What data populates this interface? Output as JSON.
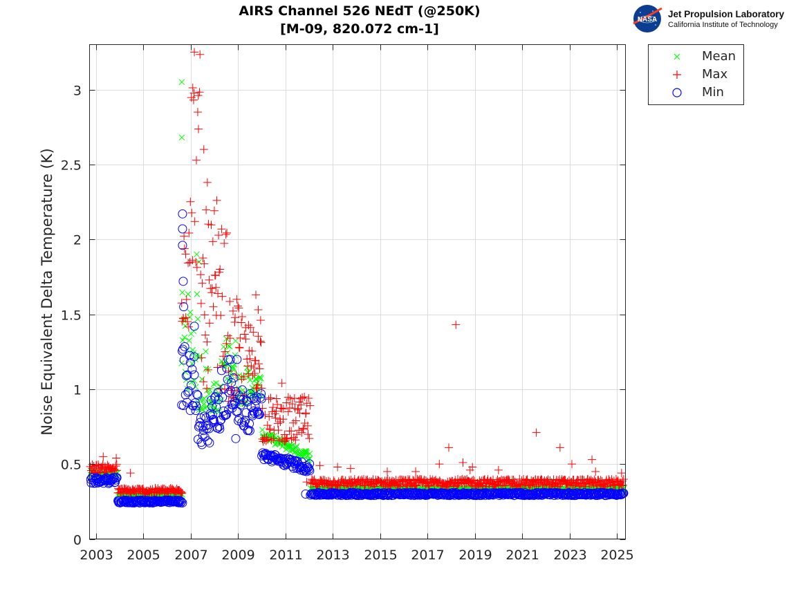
{
  "logo": {
    "emblem": "NASA",
    "name": "Jet Propulsion Laboratory",
    "subtitle": "California Institute of Technology"
  },
  "chart_data": {
    "type": "scatter",
    "title": "AIRS Channel 526 NEdT (@250K)",
    "subtitle": "[M-09, 820.072 cm-1]",
    "xlabel": "",
    "ylabel": "Noise Equivalent Delta Temperature (K)",
    "xlim": [
      2002.7,
      2025.4
    ],
    "ylim": [
      0,
      3.3
    ],
    "xticks": [
      2003,
      2005,
      2007,
      2009,
      2011,
      2013,
      2015,
      2017,
      2019,
      2021,
      2023,
      2025
    ],
    "yticks": [
      0,
      0.5,
      1,
      1.5,
      2,
      2.5,
      3
    ],
    "ytick_labels": [
      "0",
      "0.5",
      "1",
      "1.5",
      "2",
      "2.5",
      "3"
    ],
    "grid": true,
    "legend_position": "outside-top-right",
    "series": [
      {
        "name": "Mean",
        "marker": "x",
        "color": "#00ff00",
        "segments": [
          {
            "x": [
              2002.75,
              2003.9
            ],
            "y": [
              0.42,
              0.45
            ]
          },
          {
            "x": [
              2003.9,
              2006.65
            ],
            "y": [
              0.28,
              0.3
            ]
          },
          {
            "x": [
              2006.6,
              2006.75
            ],
            "y": [
              1.1,
              1.7
            ]
          },
          {
            "x": [
              2006.75,
              2007.3
            ],
            "y": [
              1.0,
              1.65
            ]
          },
          {
            "x": [
              2007.3,
              2007.75
            ],
            "y": [
              0.85,
              1.3
            ]
          },
          {
            "x": [
              2007.75,
              2008.3
            ],
            "y": [
              0.85,
              1.05
            ]
          },
          {
            "x": [
              2008.3,
              2008.9
            ],
            "y": [
              1.05,
              1.35
            ]
          },
          {
            "x": [
              2008.9,
              2009.5
            ],
            "y": [
              0.9,
              1.15
            ]
          },
          {
            "x": [
              2009.5,
              2010.0
            ],
            "y": [
              0.95,
              1.1
            ]
          },
          {
            "x": [
              2010.0,
              2012.05
            ],
            "y": [
              0.7,
              0.55
            ]
          },
          {
            "x": [
              2012.05,
              2025.3
            ],
            "y": [
              0.33,
              0.34
            ]
          }
        ],
        "outliers": [
          {
            "x": 2006.62,
            "y": 3.05
          },
          {
            "x": 2006.62,
            "y": 2.68
          },
          {
            "x": 2007.25,
            "y": 1.9
          },
          {
            "x": 2007.35,
            "y": 1.85
          }
        ]
      },
      {
        "name": "Max",
        "marker": "+",
        "color": "#ff0000",
        "segments": [
          {
            "x": [
              2002.75,
              2003.9
            ],
            "y": [
              0.44,
              0.5
            ]
          },
          {
            "x": [
              2003.9,
              2006.65
            ],
            "y": [
              0.3,
              0.34
            ]
          },
          {
            "x": [
              2006.6,
              2007.0
            ],
            "y": [
              1.4,
              2.6
            ]
          },
          {
            "x": [
              2007.0,
              2007.4
            ],
            "y": [
              1.8,
              3.25
            ]
          },
          {
            "x": [
              2007.4,
              2008.0
            ],
            "y": [
              1.0,
              2.2
            ]
          },
          {
            "x": [
              2008.0,
              2008.6
            ],
            "y": [
              1.0,
              2.1
            ]
          },
          {
            "x": [
              2008.6,
              2009.3
            ],
            "y": [
              0.9,
              1.6
            ]
          },
          {
            "x": [
              2009.3,
              2010.0
            ],
            "y": [
              1.0,
              1.45
            ]
          },
          {
            "x": [
              2010.0,
              2012.05
            ],
            "y": [
              0.65,
              0.95
            ]
          },
          {
            "x": [
              2012.05,
              2025.3
            ],
            "y": [
              0.35,
              0.4
            ]
          }
        ],
        "outliers": [
          {
            "x": 2003.3,
            "y": 0.55
          },
          {
            "x": 2003.85,
            "y": 0.54
          },
          {
            "x": 2004.45,
            "y": 0.44
          },
          {
            "x": 2007.15,
            "y": 3.25
          },
          {
            "x": 2007.55,
            "y": 2.6
          },
          {
            "x": 2007.7,
            "y": 2.38
          },
          {
            "x": 2008.1,
            "y": 2.26
          },
          {
            "x": 2009.75,
            "y": 1.63
          },
          {
            "x": 2009.85,
            "y": 1.53
          },
          {
            "x": 2009.95,
            "y": 1.46
          },
          {
            "x": 2010.85,
            "y": 1.04
          },
          {
            "x": 2011.9,
            "y": 0.38
          },
          {
            "x": 2012.45,
            "y": 0.49
          },
          {
            "x": 2013.2,
            "y": 0.48
          },
          {
            "x": 2013.75,
            "y": 0.47
          },
          {
            "x": 2015.3,
            "y": 0.45
          },
          {
            "x": 2016.5,
            "y": 0.45
          },
          {
            "x": 2017.5,
            "y": 0.5
          },
          {
            "x": 2017.9,
            "y": 0.61
          },
          {
            "x": 2018.2,
            "y": 1.43
          },
          {
            "x": 2018.5,
            "y": 0.51
          },
          {
            "x": 2018.8,
            "y": 0.46
          },
          {
            "x": 2018.9,
            "y": 0.48
          },
          {
            "x": 2020.0,
            "y": 0.46
          },
          {
            "x": 2021.6,
            "y": 0.71
          },
          {
            "x": 2022.6,
            "y": 0.61
          },
          {
            "x": 2023.1,
            "y": 0.5
          },
          {
            "x": 2023.95,
            "y": 0.53
          },
          {
            "x": 2024.1,
            "y": 0.45
          },
          {
            "x": 2025.2,
            "y": 0.44
          }
        ]
      },
      {
        "name": "Min",
        "marker": "o",
        "color": "#0000ff",
        "segments": [
          {
            "x": [
              2002.75,
              2003.9
            ],
            "y": [
              0.37,
              0.41
            ]
          },
          {
            "x": [
              2003.9,
              2006.65
            ],
            "y": [
              0.24,
              0.26
            ]
          },
          {
            "x": [
              2006.6,
              2006.85
            ],
            "y": [
              0.84,
              1.3
            ]
          },
          {
            "x": [
              2006.85,
              2007.3
            ],
            "y": [
              0.85,
              1.25
            ]
          },
          {
            "x": [
              2007.3,
              2007.8
            ],
            "y": [
              0.63,
              0.85
            ]
          },
          {
            "x": [
              2007.8,
              2008.3
            ],
            "y": [
              0.7,
              1.0
            ]
          },
          {
            "x": [
              2008.3,
              2008.7
            ],
            "y": [
              0.8,
              1.25
            ]
          },
          {
            "x": [
              2008.7,
              2009.0
            ],
            "y": [
              0.85,
              1.2
            ]
          },
          {
            "x": [
              2009.0,
              2009.5
            ],
            "y": [
              0.72,
              1.0
            ]
          },
          {
            "x": [
              2009.5,
              2010.0
            ],
            "y": [
              0.82,
              0.98
            ]
          },
          {
            "x": [
              2010.0,
              2012.05
            ],
            "y": [
              0.56,
              0.47
            ]
          },
          {
            "x": [
              2012.05,
              2025.3
            ],
            "y": [
              0.29,
              0.31
            ]
          }
        ],
        "outliers": [
          {
            "x": 2006.65,
            "y": 2.17
          },
          {
            "x": 2006.65,
            "y": 2.07
          },
          {
            "x": 2006.65,
            "y": 1.96
          },
          {
            "x": 2006.68,
            "y": 1.72
          },
          {
            "x": 2006.7,
            "y": 1.55
          },
          {
            "x": 2007.15,
            "y": 1.42
          },
          {
            "x": 2008.9,
            "y": 0.67
          },
          {
            "x": 2011.85,
            "y": 0.3
          }
        ]
      }
    ]
  }
}
